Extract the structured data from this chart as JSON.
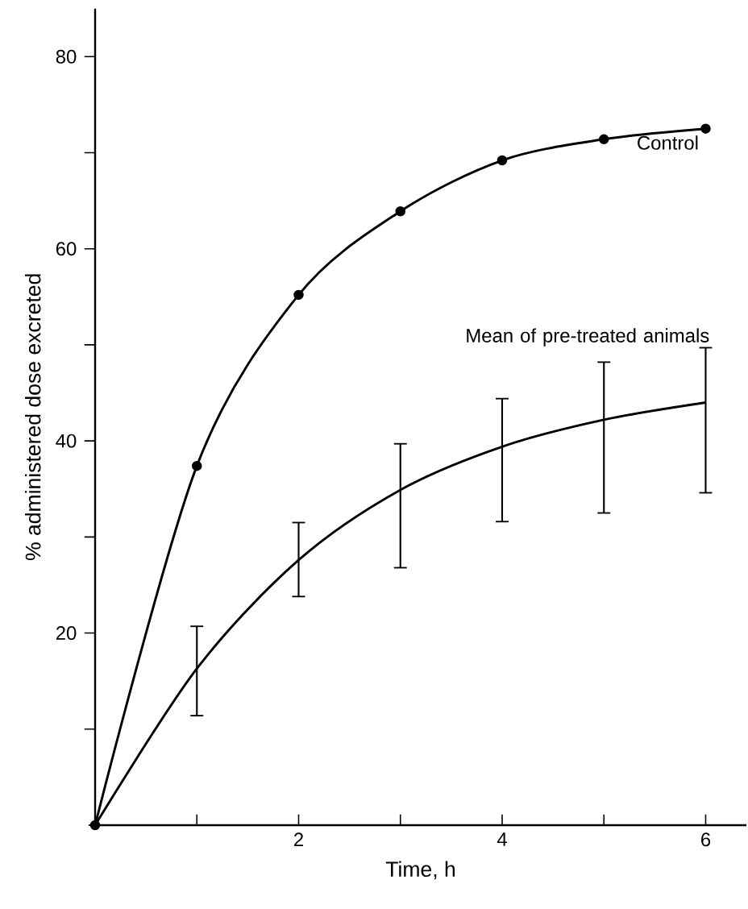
{
  "chart_data": {
    "type": "line",
    "xlabel": "Time,  h",
    "ylabel": "% administered dose excreted",
    "xlim": [
      0,
      6.4
    ],
    "ylim": [
      0,
      85
    ],
    "xticks": [
      {
        "value": 1,
        "label": null
      },
      2,
      {
        "value": 3,
        "label": null
      },
      4,
      {
        "value": 5,
        "label": null
      },
      6
    ],
    "yticks": [
      {
        "value": 10,
        "label": null
      },
      20,
      {
        "value": 30,
        "label": null
      },
      40,
      {
        "value": 50,
        "label": null
      },
      60,
      {
        "value": 70,
        "label": null
      },
      80
    ],
    "grid": false,
    "legend": false,
    "line_style": "solid",
    "series": [
      {
        "name": "Control",
        "color": "#000000",
        "marker": "circle",
        "x": [
          0,
          1,
          2,
          3,
          4,
          5,
          6
        ],
        "values": [
          0,
          37.4,
          55.2,
          63.9,
          69.2,
          71.4,
          72.5
        ]
      },
      {
        "name": "Mean of pre-treated animals",
        "color": "#000000",
        "marker": "none",
        "x": [
          0,
          1,
          2,
          3,
          4,
          5,
          6
        ],
        "values": [
          0,
          16.3,
          27.6,
          34.9,
          39.4,
          42.2,
          44.0
        ],
        "errors": [
          null,
          [
            11.4,
            20.7
          ],
          [
            23.8,
            31.5
          ],
          [
            26.8,
            39.7
          ],
          [
            31.6,
            44.4
          ],
          [
            32.5,
            48.2
          ],
          [
            34.6,
            49.7
          ]
        ]
      }
    ]
  }
}
